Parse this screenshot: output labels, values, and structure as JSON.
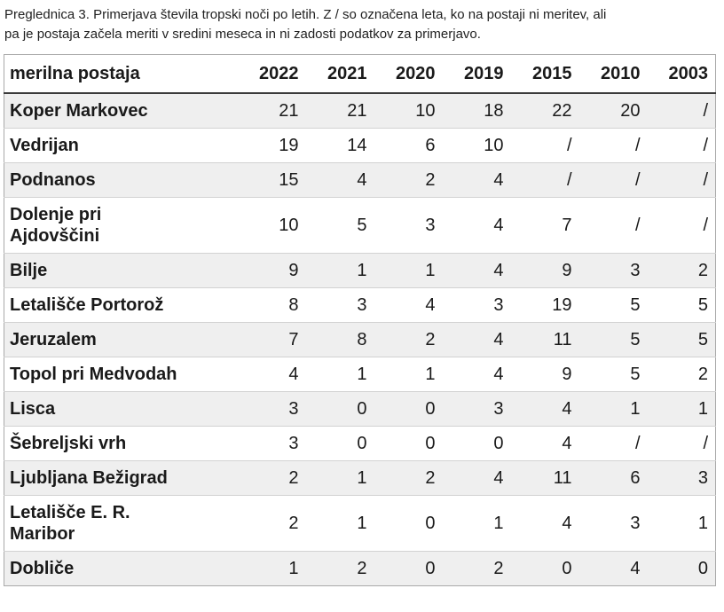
{
  "caption": {
    "line1": "Preglednica 3. Primerjava števila tropski noči po letih. Z / so označena leta, ko na postaji ni meritev, ali",
    "line2": "pa je postaja začela meriti v sredini meseca in ni zadosti podatkov za primerjavo."
  },
  "table": {
    "header": [
      "merilna postaja",
      "2022",
      "2021",
      "2020",
      "2019",
      "2015",
      "2010",
      "2003"
    ],
    "no_data_symbol": "/",
    "rows": [
      {
        "station": "Koper Markovec",
        "values": [
          "21",
          "21",
          "10",
          "18",
          "22",
          "20",
          "/"
        ]
      },
      {
        "station": "Vedrijan",
        "values": [
          "19",
          "14",
          "6",
          "10",
          "/",
          "/",
          "/"
        ]
      },
      {
        "station": "Podnanos",
        "values": [
          "15",
          "4",
          "2",
          "4",
          "/",
          "/",
          "/"
        ]
      },
      {
        "station": "Dolenje pri\nAjdovščini",
        "values": [
          "10",
          "5",
          "3",
          "4",
          "7",
          "/",
          "/"
        ]
      },
      {
        "station": "Bilje",
        "values": [
          "9",
          "1",
          "1",
          "4",
          "9",
          "3",
          "2"
        ]
      },
      {
        "station": "Letališče Portorož",
        "values": [
          "8",
          "3",
          "4",
          "3",
          "19",
          "5",
          "5"
        ]
      },
      {
        "station": "Jeruzalem",
        "values": [
          "7",
          "8",
          "2",
          "4",
          "11",
          "5",
          "5"
        ]
      },
      {
        "station": "Topol pri Medvodah",
        "values": [
          "4",
          "1",
          "1",
          "4",
          "9",
          "5",
          "2"
        ]
      },
      {
        "station": "Lisca",
        "values": [
          "3",
          "0",
          "0",
          "3",
          "4",
          "1",
          "1"
        ]
      },
      {
        "station": "Šebreljski vrh",
        "values": [
          "3",
          "0",
          "0",
          "0",
          "4",
          "/",
          "/"
        ]
      },
      {
        "station": "Ljubljana Bežigrad",
        "values": [
          "2",
          "1",
          "2",
          "4",
          "11",
          "6",
          "3"
        ]
      },
      {
        "station": "Letališče E. R.\nMaribor",
        "values": [
          "2",
          "1",
          "0",
          "1",
          "4",
          "3",
          "1"
        ]
      },
      {
        "station": "Dobliče",
        "values": [
          "1",
          "2",
          "0",
          "2",
          "0",
          "4",
          "0"
        ]
      }
    ]
  },
  "colors": {
    "row_stripe": "#efefef",
    "row_border": "#d2d2d2",
    "outer_border": "#a9a9a9",
    "header_rule": "#3b3b3b",
    "text": "#1a1a1a"
  }
}
